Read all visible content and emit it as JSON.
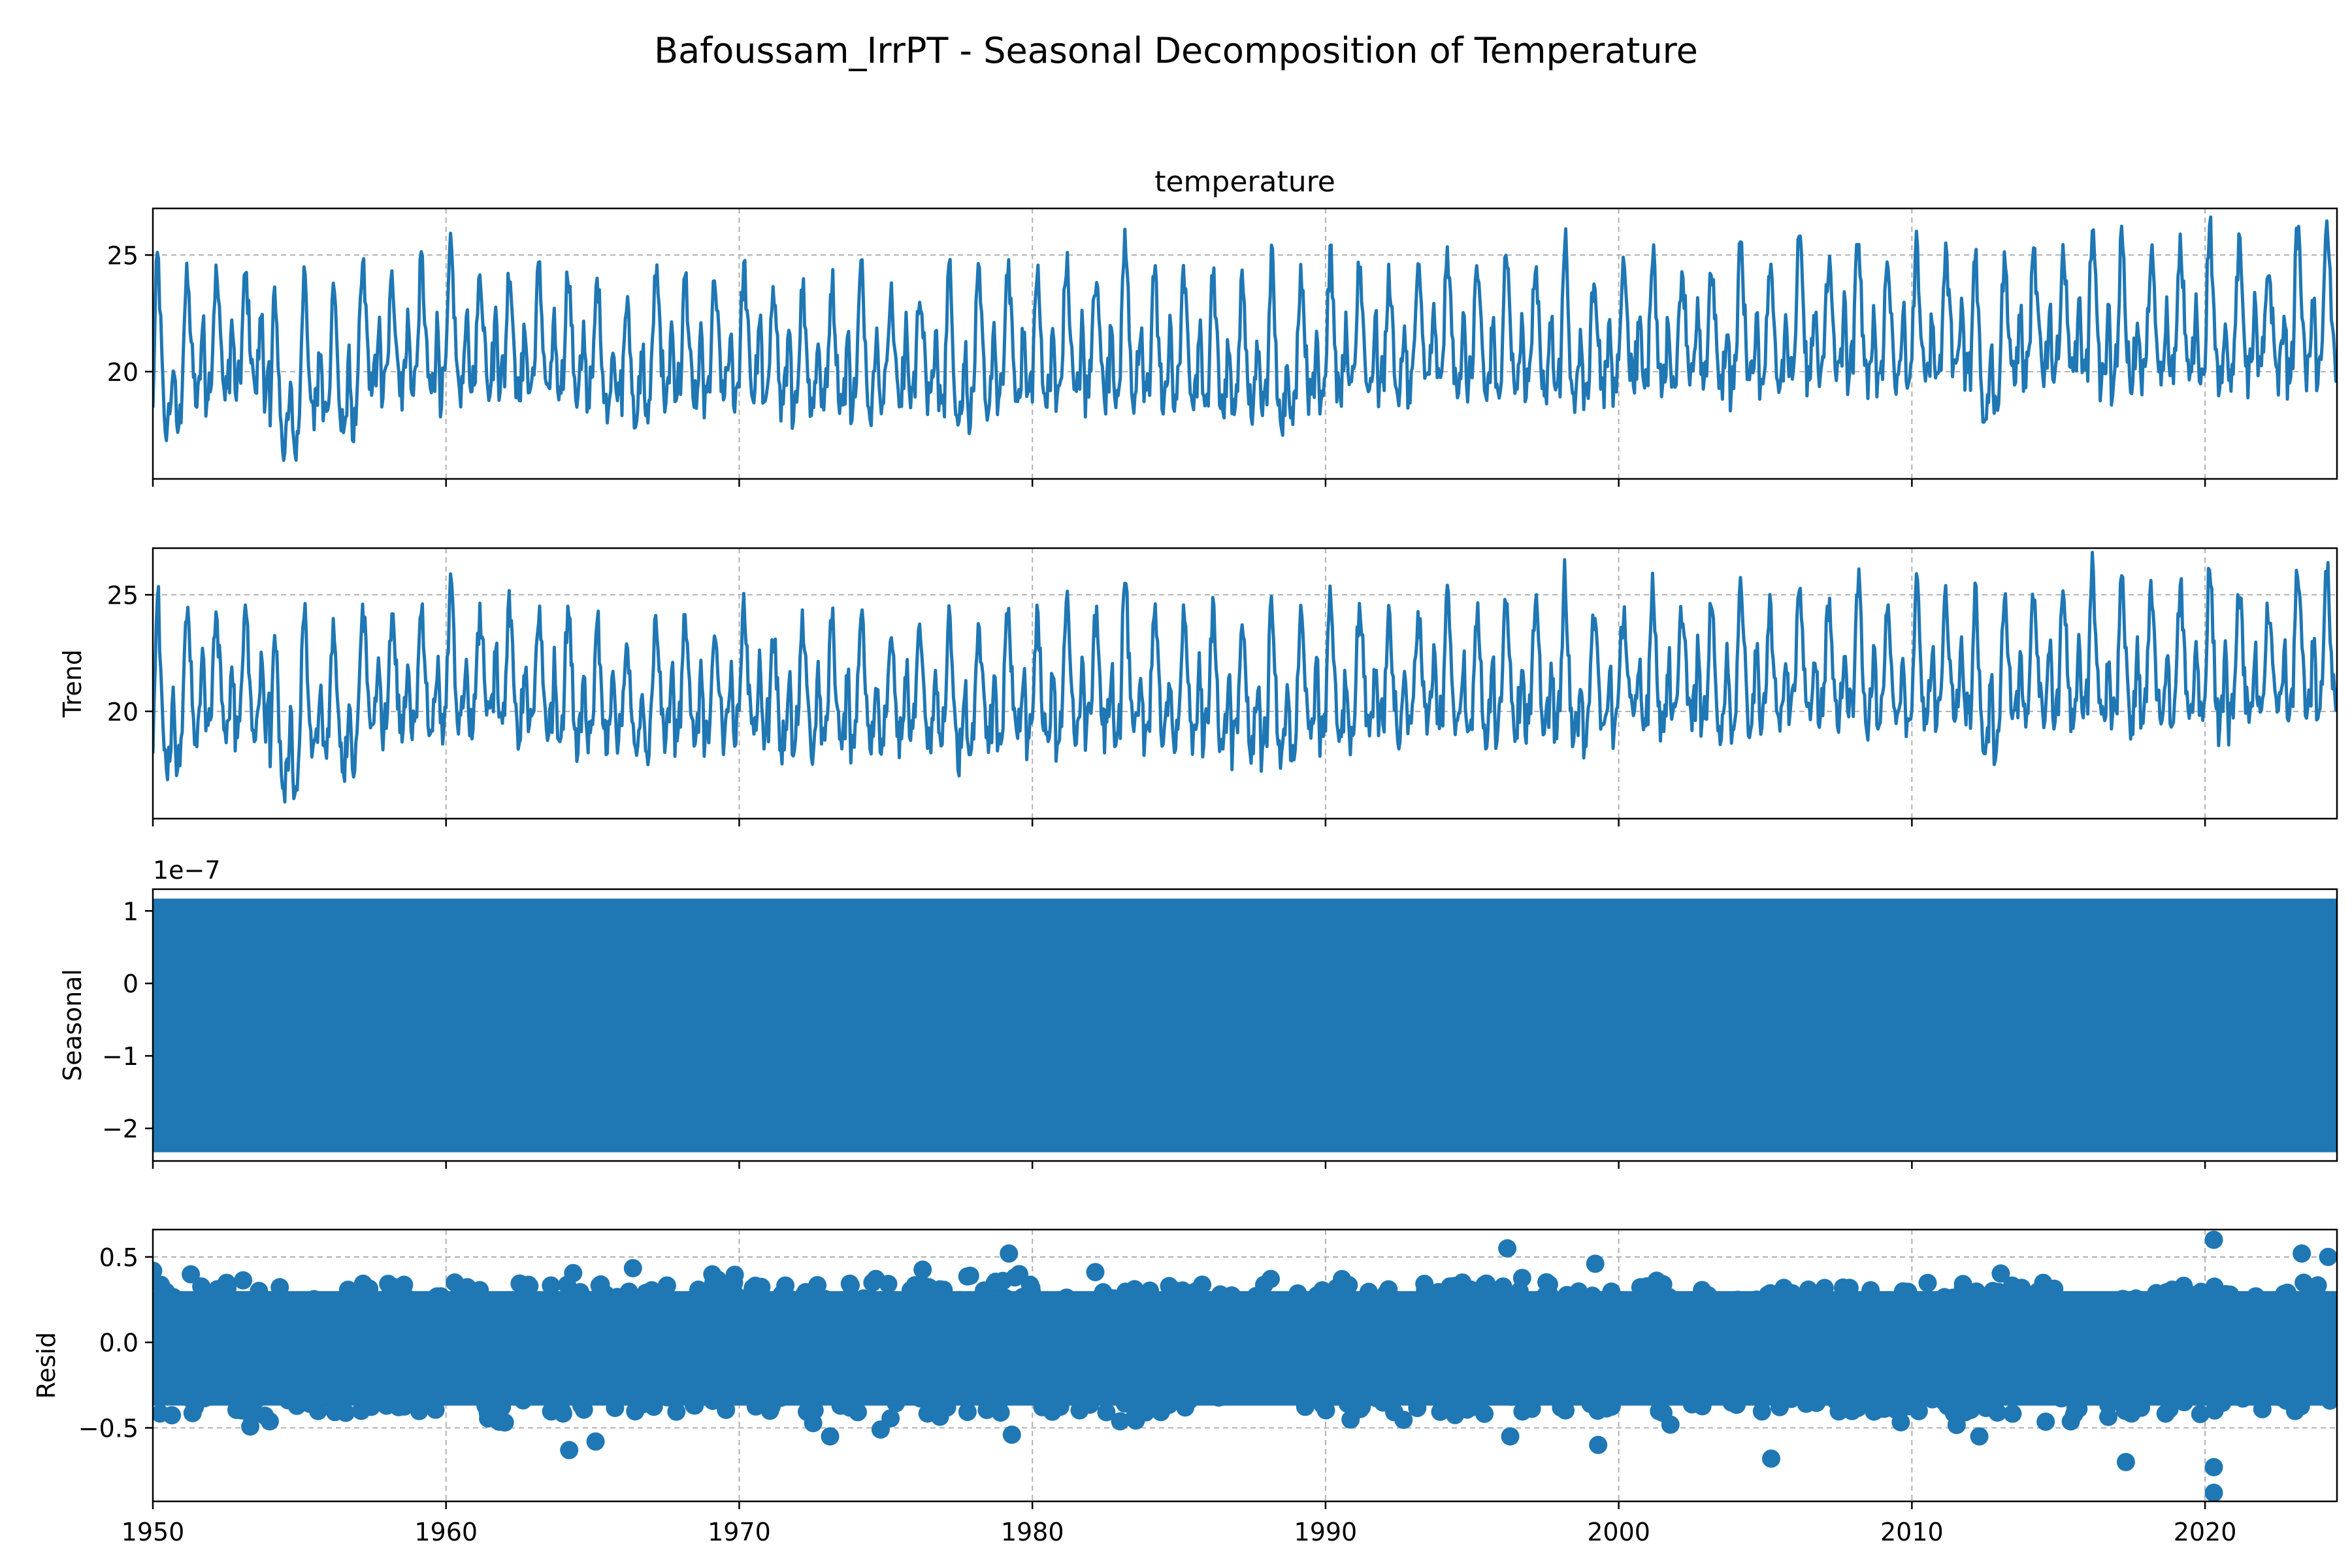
{
  "figure": {
    "title": "Bafoussam_IrrPT - Seasonal Decomposition of Temperature"
  },
  "colors": {
    "line": "#1f77b4",
    "grid": "#b0b0b0",
    "axis": "#000000"
  },
  "chart_data": [
    {
      "type": "line",
      "title": "temperature",
      "ylabel": "",
      "xlim": [
        1950,
        2024.5
      ],
      "ylim": [
        15.4,
        27.0
      ],
      "y_ticks": [
        "20",
        "25"
      ],
      "y_tick_values": [
        20,
        25
      ],
      "grid": true,
      "series": [
        {
          "description_points": "annual peak / trough / mid values (approx.)",
          "annual_peaks": [
            25.0,
            24.0,
            24.2,
            24.2,
            23.5,
            24.2,
            24.0,
            24.5,
            24.0,
            24.8,
            25.3,
            24.0,
            24.5,
            24.4,
            24.5,
            24.0,
            23.0,
            24.2,
            24.2,
            23.8,
            24.5,
            23.5,
            23.7,
            24.0,
            24.5,
            23.4,
            23.6,
            24.5,
            24.0,
            24.7,
            24.2,
            24.7,
            24.0,
            26.0,
            24.5,
            24.0,
            24.5,
            24.0,
            25.0,
            24.5,
            25.0,
            24.7,
            24.0,
            24.2,
            25.1,
            24.5,
            25.4,
            24.5,
            26.0,
            24.4,
            24.5,
            25.3,
            24.5,
            24.6,
            25.6,
            24.5,
            25.8,
            24.8,
            25.8,
            24.8,
            25.5,
            25.0,
            25.5,
            24.8,
            25.0,
            25.4,
            26.2,
            25.8,
            25.0,
            25.3,
            26.5,
            25.3,
            24.6,
            26.2
          ],
          "annual_troughs": [
            16.4,
            18.0,
            18.0,
            18.2,
            15.6,
            17.0,
            16.4,
            18.0,
            18.2,
            18.0,
            18.2,
            18.5,
            18.0,
            18.0,
            17.8,
            17.5,
            17.0,
            18.0,
            17.5,
            17.8,
            18.0,
            17.5,
            17.5,
            17.5,
            17.6,
            17.8,
            17.6,
            17.0,
            17.5,
            17.8,
            17.6,
            18.0,
            18.0,
            17.8,
            17.7,
            17.8,
            17.4,
            17.3,
            16.8,
            17.8,
            17.8,
            18.2,
            18.0,
            18.5,
            18.2,
            18.0,
            18.3,
            18.2,
            17.7,
            18.0,
            18.5,
            18.3,
            18.5,
            18.2,
            18.5,
            18.5,
            18.6,
            18.8,
            18.5,
            18.5,
            18.6,
            18.8,
            17.3,
            18.6,
            18.8,
            18.7,
            18.5,
            18.5,
            18.6,
            18.7,
            18.5,
            18.8,
            18.7,
            19.0
          ]
        }
      ]
    },
    {
      "type": "line",
      "title": "",
      "ylabel": "Trend",
      "xlim": [
        1950,
        2024.5
      ],
      "ylim": [
        15.4,
        27.0
      ],
      "y_ticks": [
        "20",
        "25"
      ],
      "y_tick_values": [
        20,
        25
      ],
      "grid": true,
      "series": [
        {
          "note_same_shape_as_observed": true
        }
      ]
    },
    {
      "type": "area",
      "title": "",
      "ylabel": "Seasonal",
      "offset_label": "1e−7",
      "xlim": [
        1950,
        2024.5
      ],
      "ylim": [
        -2.45,
        1.3
      ],
      "y_ticks": [
        "−2",
        "−1",
        "0",
        "1"
      ],
      "y_tick_values": [
        -2,
        -1,
        0,
        1
      ],
      "band_min": -2.33,
      "band_max": 1.17,
      "grid": false
    },
    {
      "type": "scatter",
      "title": "",
      "ylabel": "Resid",
      "xlim": [
        1950,
        2024.5
      ],
      "ylim": [
        -0.93,
        0.66
      ],
      "y_ticks": [
        "−0.5",
        "0.0",
        "0.5"
      ],
      "y_tick_values": [
        -0.5,
        0.0,
        0.5
      ],
      "band_min": -0.42,
      "band_max": 0.35,
      "outliers": [
        {
          "x": 1964.2,
          "y": -0.63
        },
        {
          "x": 1965.1,
          "y": -0.58
        },
        {
          "x": 1973.1,
          "y": -0.55
        },
        {
          "x": 1979.2,
          "y": 0.52
        },
        {
          "x": 1979.3,
          "y": -0.54
        },
        {
          "x": 1996.2,
          "y": 0.55
        },
        {
          "x": 1996.3,
          "y": -0.55
        },
        {
          "x": 1999.3,
          "y": -0.6
        },
        {
          "x": 1999.2,
          "y": 0.46
        },
        {
          "x": 2005.2,
          "y": -0.68
        },
        {
          "x": 2017.3,
          "y": -0.7
        },
        {
          "x": 2020.3,
          "y": 0.6
        },
        {
          "x": 2020.3,
          "y": -0.73
        },
        {
          "x": 2020.3,
          "y": -0.88
        },
        {
          "x": 2012.3,
          "y": -0.55
        },
        {
          "x": 2023.3,
          "y": 0.52
        },
        {
          "x": 2024.2,
          "y": 0.5
        }
      ],
      "grid": true
    }
  ],
  "x_axis": {
    "tick_values": [
      1950,
      1960,
      1970,
      1980,
      1990,
      2000,
      2010,
      2020
    ],
    "tick_labels": [
      "1950",
      "1960",
      "1970",
      "1980",
      "1990",
      "2000",
      "2010",
      "2020"
    ]
  }
}
